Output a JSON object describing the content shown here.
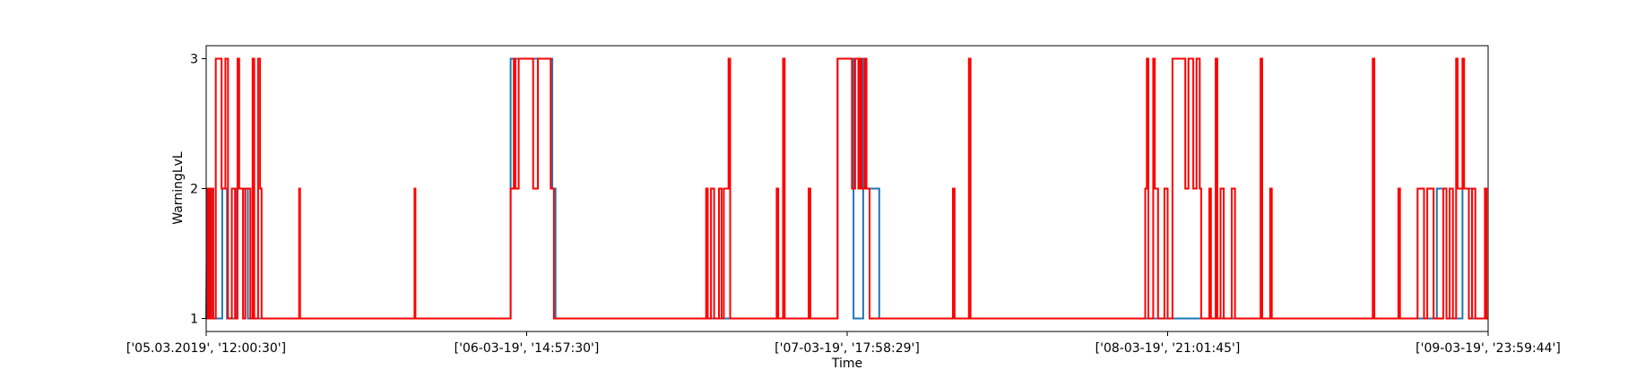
{
  "chart_data": {
    "type": "line",
    "title": "",
    "xlabel": "Time",
    "ylabel": "WarningLvL",
    "x_tick_labels": [
      "['05.03.2019', '12:00:30']",
      "['06-03-19', '14:57:30']",
      "['07-03-19', '17:58:29']",
      "['08-03-19', '21:01:45']",
      "['09-03-19', '23:59:44']"
    ],
    "y_ticks": [
      1,
      2,
      3
    ],
    "ylim": [
      0.9,
      3.1
    ],
    "xlim": [
      0,
      4
    ],
    "grid": false,
    "step": true,
    "series": [
      {
        "color": "#1f77b4",
        "points": [
          [
            0.0,
            1
          ],
          [
            0.003,
            2
          ],
          [
            0.02,
            2
          ],
          [
            0.02,
            1
          ],
          [
            0.05,
            1
          ],
          [
            0.05,
            2
          ],
          [
            0.065,
            2
          ],
          [
            0.065,
            1
          ],
          [
            0.095,
            1
          ],
          [
            0.095,
            2
          ],
          [
            0.13,
            2
          ],
          [
            0.13,
            1
          ],
          [
            0.17,
            1
          ],
          [
            0.17,
            1
          ],
          [
            0.95,
            1
          ],
          [
            0.95,
            3
          ],
          [
            1.08,
            3
          ],
          [
            1.08,
            2
          ],
          [
            1.09,
            2
          ],
          [
            1.09,
            1
          ],
          [
            1.65,
            1
          ],
          [
            1.97,
            1
          ],
          [
            1.97,
            3
          ],
          [
            2.02,
            3
          ],
          [
            2.02,
            1
          ],
          [
            2.05,
            1
          ],
          [
            2.05,
            3
          ],
          [
            2.06,
            3
          ],
          [
            2.06,
            2
          ],
          [
            2.1,
            2
          ],
          [
            2.1,
            1
          ],
          [
            3.84,
            1
          ],
          [
            3.84,
            2
          ],
          [
            3.87,
            2
          ],
          [
            3.87,
            1
          ],
          [
            3.92,
            1
          ],
          [
            3.92,
            2
          ],
          [
            3.95,
            2
          ],
          [
            3.95,
            1
          ],
          [
            4.0,
            1
          ]
        ]
      },
      {
        "color": "#ff0000",
        "points": [
          [
            0.0,
            1
          ],
          [
            0.005,
            1
          ],
          [
            0.005,
            2
          ],
          [
            0.01,
            2
          ],
          [
            0.01,
            1
          ],
          [
            0.015,
            1
          ],
          [
            0.015,
            2
          ],
          [
            0.022,
            2
          ],
          [
            0.022,
            1
          ],
          [
            0.03,
            1
          ],
          [
            0.03,
            3
          ],
          [
            0.048,
            3
          ],
          [
            0.048,
            2
          ],
          [
            0.06,
            2
          ],
          [
            0.06,
            3
          ],
          [
            0.068,
            3
          ],
          [
            0.068,
            1
          ],
          [
            0.08,
            1
          ],
          [
            0.08,
            2
          ],
          [
            0.09,
            2
          ],
          [
            0.09,
            1
          ],
          [
            0.098,
            1
          ],
          [
            0.098,
            3
          ],
          [
            0.103,
            3
          ],
          [
            0.103,
            2
          ],
          [
            0.115,
            2
          ],
          [
            0.115,
            1
          ],
          [
            0.122,
            1
          ],
          [
            0.122,
            2
          ],
          [
            0.138,
            2
          ],
          [
            0.138,
            1
          ],
          [
            0.145,
            1
          ],
          [
            0.145,
            3
          ],
          [
            0.15,
            3
          ],
          [
            0.15,
            1
          ],
          [
            0.162,
            1
          ],
          [
            0.162,
            3
          ],
          [
            0.168,
            3
          ],
          [
            0.168,
            2
          ],
          [
            0.173,
            2
          ],
          [
            0.173,
            1
          ],
          [
            0.29,
            1
          ],
          [
            0.29,
            2
          ],
          [
            0.293,
            2
          ],
          [
            0.293,
            1
          ],
          [
            0.65,
            1
          ],
          [
            0.65,
            2
          ],
          [
            0.653,
            2
          ],
          [
            0.653,
            1
          ],
          [
            0.95,
            1
          ],
          [
            0.95,
            2
          ],
          [
            0.96,
            2
          ],
          [
            0.96,
            3
          ],
          [
            0.965,
            3
          ],
          [
            0.965,
            2
          ],
          [
            0.975,
            2
          ],
          [
            0.975,
            3
          ],
          [
            1.02,
            3
          ],
          [
            1.02,
            2
          ],
          [
            1.035,
            2
          ],
          [
            1.035,
            3
          ],
          [
            1.075,
            3
          ],
          [
            1.075,
            2
          ],
          [
            1.085,
            2
          ],
          [
            1.085,
            1
          ],
          [
            1.56,
            1
          ],
          [
            1.56,
            2
          ],
          [
            1.565,
            2
          ],
          [
            1.565,
            1
          ],
          [
            1.575,
            1
          ],
          [
            1.575,
            2
          ],
          [
            1.585,
            2
          ],
          [
            1.585,
            1
          ],
          [
            1.6,
            1
          ],
          [
            1.6,
            2
          ],
          [
            1.608,
            2
          ],
          [
            1.608,
            1
          ],
          [
            1.615,
            1
          ],
          [
            1.615,
            2
          ],
          [
            1.63,
            2
          ],
          [
            1.63,
            3
          ],
          [
            1.635,
            3
          ],
          [
            1.635,
            1
          ],
          [
            1.78,
            1
          ],
          [
            1.78,
            2
          ],
          [
            1.785,
            2
          ],
          [
            1.785,
            1
          ],
          [
            1.8,
            1
          ],
          [
            1.8,
            3
          ],
          [
            1.805,
            3
          ],
          [
            1.805,
            1
          ],
          [
            1.88,
            1
          ],
          [
            1.88,
            2
          ],
          [
            1.885,
            2
          ],
          [
            1.885,
            1
          ],
          [
            1.88,
            1
          ],
          [
            1.97,
            1
          ],
          [
            1.97,
            3
          ],
          [
            2.015,
            3
          ],
          [
            2.015,
            2
          ],
          [
            2.025,
            2
          ],
          [
            2.025,
            3
          ],
          [
            2.035,
            3
          ],
          [
            2.035,
            2
          ],
          [
            2.04,
            2
          ],
          [
            2.04,
            3
          ],
          [
            2.045,
            3
          ],
          [
            2.045,
            2
          ],
          [
            2.055,
            2
          ],
          [
            2.055,
            3
          ],
          [
            2.06,
            3
          ],
          [
            2.06,
            2
          ],
          [
            2.07,
            2
          ],
          [
            2.07,
            1
          ],
          [
            2.33,
            1
          ],
          [
            2.33,
            2
          ],
          [
            2.335,
            2
          ],
          [
            2.335,
            1
          ],
          [
            2.38,
            1
          ],
          [
            2.38,
            3
          ],
          [
            2.385,
            3
          ],
          [
            2.385,
            1
          ],
          [
            2.93,
            1
          ],
          [
            2.93,
            2
          ],
          [
            2.935,
            2
          ],
          [
            2.935,
            3
          ],
          [
            2.94,
            3
          ],
          [
            2.94,
            1
          ],
          [
            2.955,
            1
          ],
          [
            2.955,
            3
          ],
          [
            2.96,
            3
          ],
          [
            2.96,
            2
          ],
          [
            2.97,
            2
          ],
          [
            2.97,
            1
          ],
          [
            2.99,
            1
          ],
          [
            2.99,
            2
          ],
          [
            3.0,
            2
          ],
          [
            3.0,
            1
          ],
          [
            3.015,
            1
          ],
          [
            3.015,
            3
          ],
          [
            3.055,
            3
          ],
          [
            3.055,
            2
          ],
          [
            3.065,
            2
          ],
          [
            3.065,
            3
          ],
          [
            3.08,
            3
          ],
          [
            3.08,
            2
          ],
          [
            3.09,
            2
          ],
          [
            3.09,
            3
          ],
          [
            3.1,
            3
          ],
          [
            3.1,
            2
          ],
          [
            3.105,
            2
          ],
          [
            3.105,
            1
          ],
          [
            3.13,
            1
          ],
          [
            3.13,
            2
          ],
          [
            3.135,
            2
          ],
          [
            3.135,
            1
          ],
          [
            3.15,
            1
          ],
          [
            3.15,
            3
          ],
          [
            3.155,
            3
          ],
          [
            3.155,
            1
          ],
          [
            3.165,
            1
          ],
          [
            3.165,
            2
          ],
          [
            3.175,
            2
          ],
          [
            3.175,
            1
          ],
          [
            3.17,
            1
          ],
          [
            3.2,
            1
          ],
          [
            3.2,
            2
          ],
          [
            3.21,
            2
          ],
          [
            3.21,
            1
          ],
          [
            3.29,
            1
          ],
          [
            3.29,
            3
          ],
          [
            3.295,
            3
          ],
          [
            3.295,
            1
          ],
          [
            3.32,
            1
          ],
          [
            3.32,
            2
          ],
          [
            3.325,
            2
          ],
          [
            3.325,
            1
          ],
          [
            3.64,
            1
          ],
          [
            3.64,
            3
          ],
          [
            3.645,
            3
          ],
          [
            3.645,
            1
          ],
          [
            3.72,
            1
          ],
          [
            3.72,
            2
          ],
          [
            3.725,
            2
          ],
          [
            3.725,
            1
          ],
          [
            3.78,
            1
          ],
          [
            3.78,
            2
          ],
          [
            3.8,
            2
          ],
          [
            3.8,
            1
          ],
          [
            3.81,
            1
          ],
          [
            3.81,
            2
          ],
          [
            3.83,
            2
          ],
          [
            3.83,
            1
          ],
          [
            3.86,
            1
          ],
          [
            3.86,
            2
          ],
          [
            3.87,
            2
          ],
          [
            3.87,
            1
          ],
          [
            3.88,
            1
          ],
          [
            3.88,
            2
          ],
          [
            3.89,
            2
          ],
          [
            3.89,
            1
          ],
          [
            3.9,
            1
          ],
          [
            3.9,
            3
          ],
          [
            3.905,
            3
          ],
          [
            3.905,
            2
          ],
          [
            3.92,
            2
          ],
          [
            3.92,
            3
          ],
          [
            3.925,
            3
          ],
          [
            3.925,
            2
          ],
          [
            3.94,
            2
          ],
          [
            3.94,
            1
          ],
          [
            3.95,
            1
          ],
          [
            3.95,
            2
          ],
          [
            3.96,
            2
          ],
          [
            3.96,
            1
          ],
          [
            3.99,
            1
          ],
          [
            3.99,
            2
          ],
          [
            3.995,
            2
          ],
          [
            3.995,
            1
          ],
          [
            4.0,
            1
          ]
        ]
      }
    ]
  }
}
